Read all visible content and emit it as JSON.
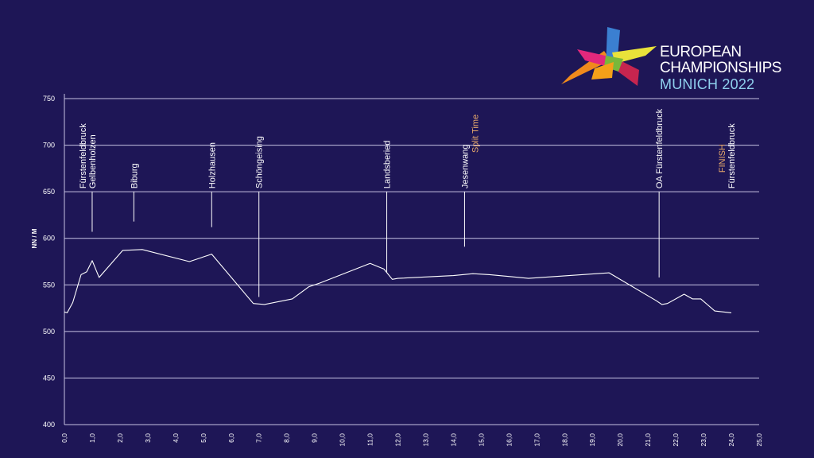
{
  "logo": {
    "line1": "EUROPEAN",
    "line2": "CHAMPIONSHIPS",
    "line3": "MUNICH 2022"
  },
  "chart_data": {
    "type": "line",
    "title": "",
    "xlabel": "",
    "ylabel": "NN / M",
    "xlim": [
      0,
      25
    ],
    "ylim": [
      400,
      750
    ],
    "grid": true,
    "x_ticks": [
      "0,0",
      "1,0",
      "2,0",
      "3,0",
      "4,0",
      "5,0",
      "6,0",
      "7,0",
      "8,0",
      "9,0",
      "10,0",
      "11,0",
      "12,0",
      "13,0",
      "14,0",
      "15,0",
      "16,0",
      "17,0",
      "18,0",
      "19,0",
      "20,0",
      "21,0",
      "22,0",
      "23,0",
      "24,0",
      "25,0"
    ],
    "y_ticks": [
      "400",
      "450",
      "500",
      "550",
      "600",
      "650",
      "700",
      "750"
    ],
    "series": [
      {
        "x": [
          0.0,
          0.1,
          0.3,
          0.6,
          0.8,
          1.0,
          1.25,
          2.1,
          2.8,
          4.5,
          5.3,
          6.8,
          7.2,
          8.2,
          8.8,
          9.2,
          11.0,
          11.5,
          11.8,
          12.0,
          14.0,
          14.7,
          15.3,
          16.7,
          19.6,
          21.3,
          21.5,
          21.7,
          22.3,
          22.6,
          22.9,
          23.4,
          24.0
        ],
        "y": [
          521,
          520,
          531,
          561,
          564,
          576,
          558,
          587,
          588,
          575,
          583,
          530,
          529,
          535,
          548,
          552,
          573,
          567,
          556,
          557,
          560,
          562,
          561,
          557,
          563,
          533,
          529,
          530,
          540,
          535,
          535,
          522,
          520
        ]
      }
    ],
    "annotations": [
      {
        "x": 1.0,
        "labels": [
          "Fürstenfeldbruck",
          "Gelbenholzen"
        ],
        "y_from": 650,
        "y_to": 607,
        "highlight": ""
      },
      {
        "x": 2.5,
        "labels": [
          "Biburg"
        ],
        "y_from": 650,
        "y_to": 618,
        "highlight": ""
      },
      {
        "x": 5.3,
        "labels": [
          "Holzhausen"
        ],
        "y_from": 650,
        "y_to": 612,
        "highlight": ""
      },
      {
        "x": 7.0,
        "labels": [
          "Schöngeising"
        ],
        "y_from": 650,
        "y_to": 537,
        "highlight": ""
      },
      {
        "x": 11.6,
        "labels": [
          "Landsberied"
        ],
        "y_from": 650,
        "y_to": 563,
        "highlight": ""
      },
      {
        "x": 14.4,
        "labels": [
          "Jesenwang"
        ],
        "y_from": 650,
        "y_to": 591,
        "highlight": "Split Time"
      },
      {
        "x": 21.4,
        "labels": [
          "OA Fürstenfeldbruck"
        ],
        "y_from": 650,
        "y_to": 558,
        "highlight": ""
      },
      {
        "x": 24.0,
        "labels": [
          "Fürstenfeldbruck"
        ],
        "y_from": 650,
        "y_to": 650,
        "highlight": "FINISH"
      }
    ],
    "colors": {
      "background": "#1e1656",
      "grid": "#c7c3e3",
      "line": "#ffffff",
      "text": "#ffffff",
      "highlight": "#e8a96b"
    }
  }
}
